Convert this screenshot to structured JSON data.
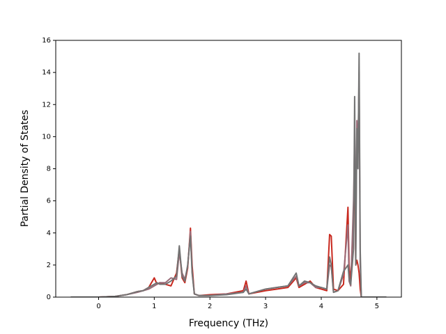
{
  "chart_data": {
    "type": "line",
    "xlabel": "Frequency (THz)",
    "ylabel": "Partial Density of States",
    "x": [
      -0.5,
      0,
      0.3,
      0.5,
      0.7,
      0.8,
      0.9,
      1.0,
      1.05,
      1.1,
      1.2,
      1.3,
      1.4,
      1.45,
      1.5,
      1.55,
      1.6,
      1.65,
      1.68,
      1.72,
      1.8,
      2.0,
      2.3,
      2.6,
      2.65,
      2.7,
      3.0,
      3.2,
      3.4,
      3.55,
      3.6,
      3.7,
      3.8,
      3.9,
      4.0,
      4.1,
      4.15,
      4.18,
      4.22,
      4.3,
      4.4,
      4.48,
      4.5,
      4.53,
      4.58,
      4.6,
      4.62,
      4.64,
      4.66,
      4.68,
      4.7,
      4.72,
      5.17
    ],
    "series": [
      {
        "color": "#c8281e",
        "values": [
          0,
          0,
          0.05,
          0.15,
          0.35,
          0.4,
          0.6,
          1.2,
          0.8,
          0.9,
          0.8,
          0.7,
          1.5,
          3.0,
          1.2,
          0.9,
          1.8,
          4.3,
          2.0,
          0.2,
          0.1,
          0.15,
          0.2,
          0.4,
          1.0,
          0.2,
          0.4,
          0.5,
          0.6,
          1.2,
          0.6,
          0.8,
          1.0,
          0.6,
          0.5,
          0.4,
          3.9,
          3.8,
          0.5,
          0.4,
          0.8,
          5.6,
          2.0,
          1.0,
          5.0,
          8.0,
          2.0,
          2.3,
          2.0,
          1.5,
          0.5,
          0,
          0
        ]
      },
      {
        "color": "#9a6b78",
        "values": [
          0,
          0,
          0.05,
          0.15,
          0.3,
          0.4,
          0.5,
          0.7,
          0.8,
          0.9,
          0.9,
          1.2,
          1.1,
          2.8,
          1.5,
          1.1,
          1.9,
          4.1,
          1.6,
          0.2,
          0.1,
          0.1,
          0.2,
          0.3,
          0.7,
          0.2,
          0.5,
          0.6,
          0.7,
          1.3,
          0.7,
          0.9,
          0.9,
          0.6,
          0.6,
          0.5,
          2.0,
          1.9,
          0.3,
          0.4,
          1.4,
          4.5,
          1.0,
          0.7,
          6.0,
          10.0,
          3.0,
          11.0,
          9.0,
          14.0,
          2.0,
          0,
          0
        ]
      },
      {
        "color": "#737373",
        "values": [
          0,
          0,
          0.05,
          0.15,
          0.35,
          0.4,
          0.6,
          0.8,
          0.9,
          0.8,
          0.8,
          1.0,
          1.3,
          3.2,
          1.3,
          1.0,
          2.0,
          3.8,
          1.5,
          0.2,
          0.1,
          0.1,
          0.15,
          0.3,
          0.5,
          0.2,
          0.5,
          0.6,
          0.7,
          1.5,
          0.7,
          1.0,
          0.9,
          0.7,
          0.6,
          0.5,
          2.5,
          2.0,
          0.3,
          0.4,
          1.6,
          2.0,
          1.2,
          0.8,
          3.0,
          12.5,
          2.0,
          10.5,
          8.0,
          15.2,
          3.0,
          0,
          0
        ]
      }
    ],
    "xlim": [
      -0.77,
      5.44
    ],
    "xticks": [
      0,
      1,
      2,
      3,
      4,
      5
    ],
    "ylim": [
      0,
      16
    ],
    "yticks": [
      0,
      2,
      4,
      6,
      8,
      10,
      12,
      14,
      16
    ]
  }
}
